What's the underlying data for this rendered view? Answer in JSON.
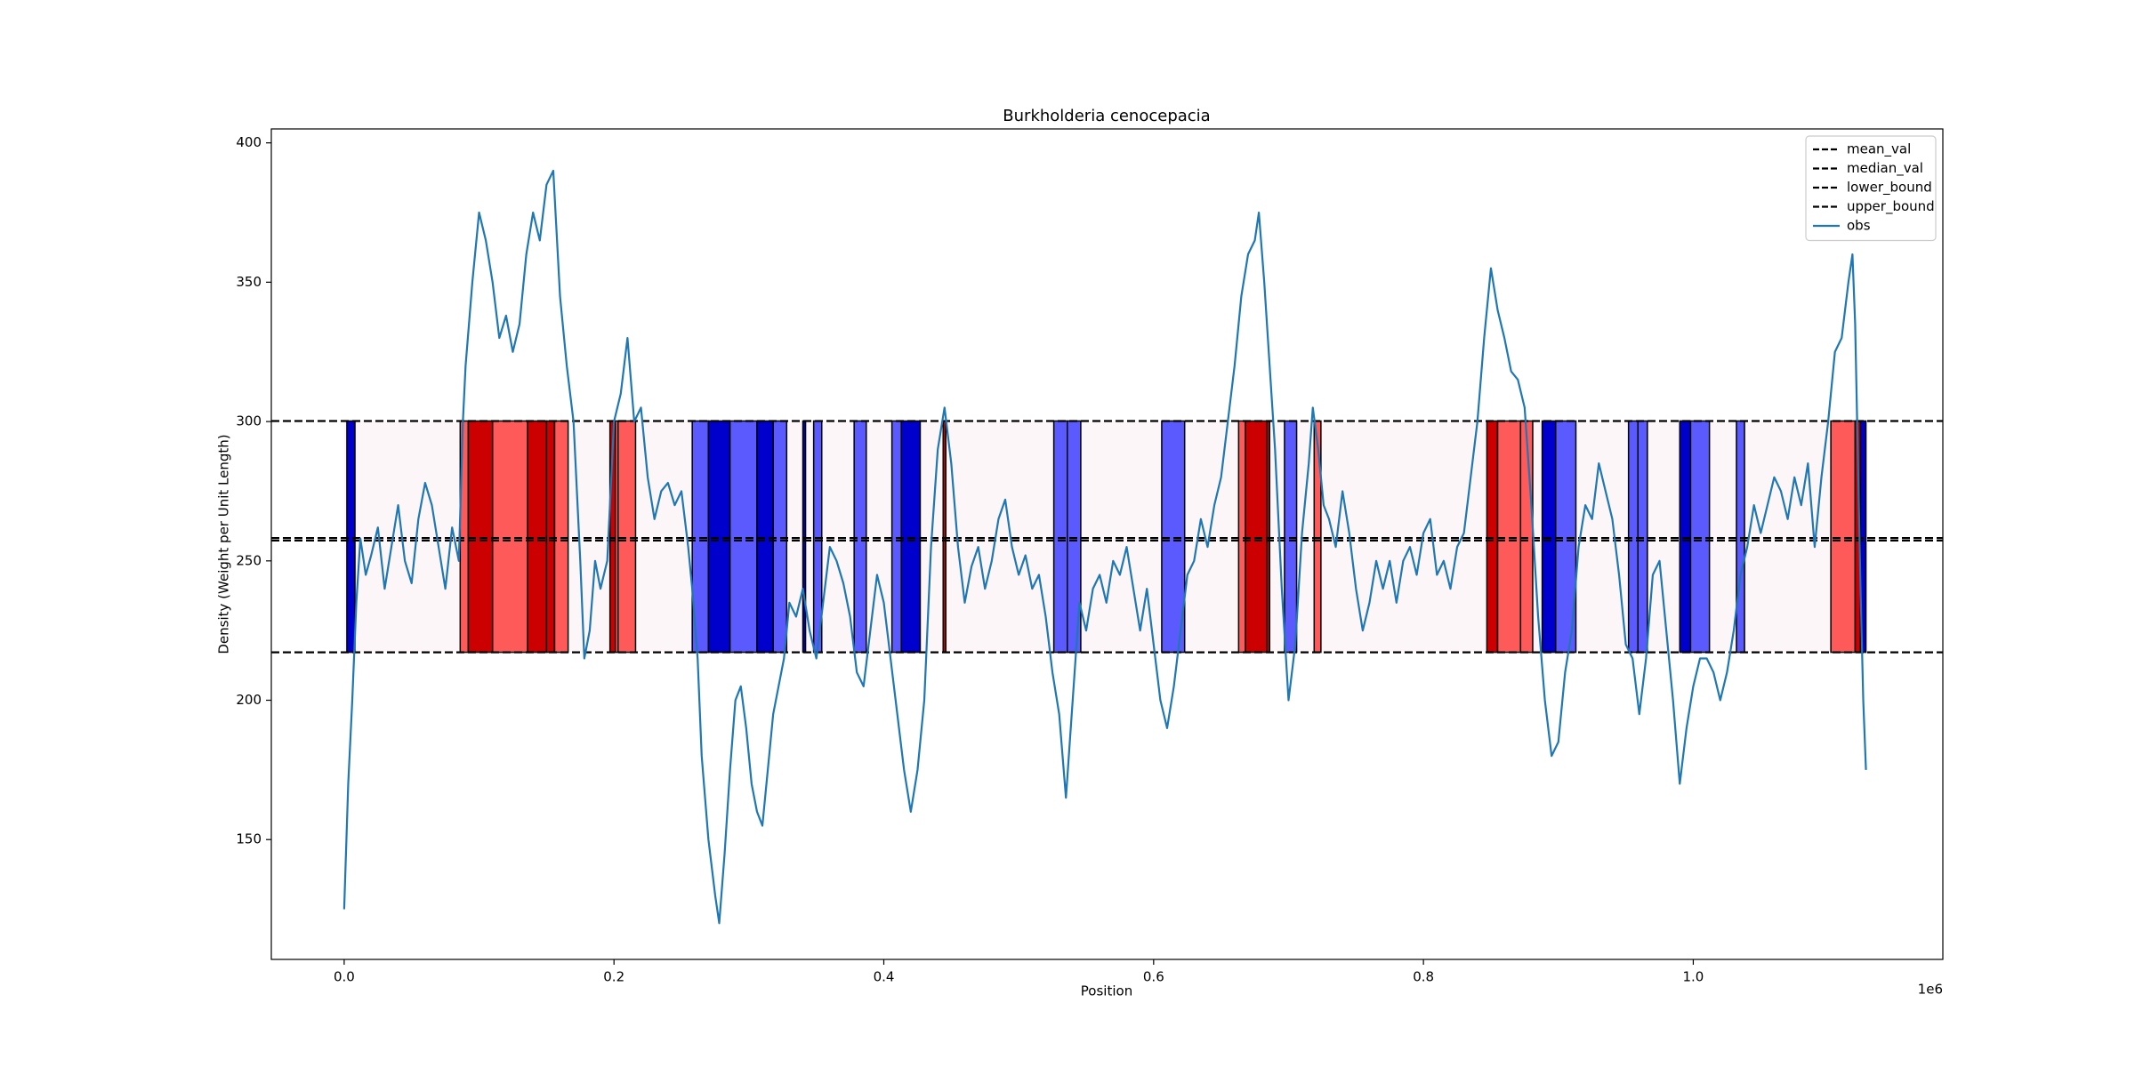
{
  "chart_data": {
    "type": "line",
    "title": "Burkholderia cenocepacia",
    "x_label": "Position",
    "y_label": "Density (Weight per Unit Length)",
    "x_offset_label": "1e6",
    "xlim": [
      -54000,
      1185000
    ],
    "ylim": [
      107,
      405
    ],
    "xticks": [
      {
        "value": 0,
        "label": "0.0"
      },
      {
        "value": 200000,
        "label": "0.2"
      },
      {
        "value": 400000,
        "label": "0.4"
      },
      {
        "value": 600000,
        "label": "0.6"
      },
      {
        "value": 800000,
        "label": "0.8"
      },
      {
        "value": 1000000,
        "label": "1.0"
      }
    ],
    "yticks": [
      150,
      200,
      250,
      300,
      350,
      400
    ],
    "legend": "upper right",
    "band": {
      "x": [
        0,
        1128000
      ],
      "color": "#fdf6f8"
    },
    "regions": [
      {
        "x": [
          2000,
          8000
        ],
        "color": "#0000cc"
      },
      {
        "x": [
          86000,
          92000
        ],
        "color": "#ff5a5a"
      },
      {
        "x": [
          92000,
          110000
        ],
        "color": "#cc0000"
      },
      {
        "x": [
          110000,
          136000
        ],
        "color": "#ff5a5a"
      },
      {
        "x": [
          136000,
          150000
        ],
        "color": "#cc0000"
      },
      {
        "x": [
          150000,
          156000
        ],
        "color": "#cc0000"
      },
      {
        "x": [
          156000,
          166000
        ],
        "color": "#ff5a5a"
      },
      {
        "x": [
          197000,
          201000
        ],
        "color": "#cc0000"
      },
      {
        "x": [
          201000,
          203000
        ],
        "color": "#ff5a5a"
      },
      {
        "x": [
          203000,
          216000
        ],
        "color": "#ff5a5a"
      },
      {
        "x": [
          258000,
          270000
        ],
        "color": "#5a5aff"
      },
      {
        "x": [
          270000,
          286000
        ],
        "color": "#0000cc"
      },
      {
        "x": [
          286000,
          306000
        ],
        "color": "#5a5aff"
      },
      {
        "x": [
          306000,
          318000
        ],
        "color": "#0000cc"
      },
      {
        "x": [
          318000,
          328000
        ],
        "color": "#5a5aff"
      },
      {
        "x": [
          340000,
          342000
        ],
        "color": "#0000cc"
      },
      {
        "x": [
          348000,
          354000
        ],
        "color": "#5a5aff"
      },
      {
        "x": [
          378000,
          387000
        ],
        "color": "#5a5aff"
      },
      {
        "x": [
          406000,
          413000
        ],
        "color": "#5a5aff"
      },
      {
        "x": [
          413000,
          427000
        ],
        "color": "#0000cc"
      },
      {
        "x": [
          444000,
          446000
        ],
        "color": "#cc0000"
      },
      {
        "x": [
          526000,
          536000
        ],
        "color": "#5a5aff"
      },
      {
        "x": [
          536000,
          546000
        ],
        "color": "#5a5aff"
      },
      {
        "x": [
          606000,
          623000
        ],
        "color": "#5a5aff"
      },
      {
        "x": [
          663000,
          668000
        ],
        "color": "#ff5a5a"
      },
      {
        "x": [
          668000,
          684000
        ],
        "color": "#cc0000"
      },
      {
        "x": [
          684000,
          686000
        ],
        "color": "#cc0000"
      },
      {
        "x": [
          697000,
          706000
        ],
        "color": "#5a5aff"
      },
      {
        "x": [
          719000,
          724000
        ],
        "color": "#ff5a5a"
      },
      {
        "x": [
          847000,
          855000
        ],
        "color": "#cc0000"
      },
      {
        "x": [
          855000,
          872000
        ],
        "color": "#ff5a5a"
      },
      {
        "x": [
          872000,
          881000
        ],
        "color": "#ff5a5a"
      },
      {
        "x": [
          888000,
          898000
        ],
        "color": "#0000cc"
      },
      {
        "x": [
          898000,
          913000
        ],
        "color": "#5a5aff"
      },
      {
        "x": [
          952000,
          959000
        ],
        "color": "#5a5aff"
      },
      {
        "x": [
          959000,
          966000
        ],
        "color": "#5a5aff"
      },
      {
        "x": [
          990000,
          998000
        ],
        "color": "#0000cc"
      },
      {
        "x": [
          998000,
          1012000
        ],
        "color": "#5a5aff"
      },
      {
        "x": [
          1032000,
          1038000
        ],
        "color": "#5a5aff"
      },
      {
        "x": [
          1102000,
          1120000
        ],
        "color": "#ff5a5a"
      },
      {
        "x": [
          1120000,
          1124000
        ],
        "color": "#cc0000"
      },
      {
        "x": [
          1124000,
          1128000
        ],
        "color": "#0000cc"
      }
    ],
    "hlines": [
      {
        "name": "mean_val",
        "value": 257.3,
        "color": "#000000"
      },
      {
        "name": "median_val",
        "value": 258.2,
        "color": "#000000"
      },
      {
        "name": "lower_bound",
        "value": 217.2,
        "color": "#000000"
      },
      {
        "name": "upper_bound",
        "value": 300.2,
        "color": "#000000"
      }
    ],
    "series": [
      {
        "name": "obs",
        "color": "#1f77b4",
        "x": [
          0,
          3000,
          6000,
          9000,
          12000,
          16000,
          20000,
          25000,
          30000,
          35000,
          40000,
          45000,
          50000,
          55000,
          60000,
          65000,
          70000,
          75000,
          80000,
          85000,
          88000,
          90000,
          95000,
          100000,
          105000,
          110000,
          115000,
          120000,
          125000,
          130000,
          135000,
          140000,
          145000,
          150000,
          155000,
          160000,
          165000,
          170000,
          175000,
          178000,
          182000,
          186000,
          190000,
          195000,
          200000,
          205000,
          210000,
          215000,
          220000,
          225000,
          230000,
          235000,
          240000,
          245000,
          250000,
          255000,
          258000,
          262000,
          265000,
          270000,
          275000,
          278000,
          282000,
          286000,
          290000,
          294000,
          298000,
          302000,
          306000,
          310000,
          314000,
          318000,
          322000,
          326000,
          330000,
          335000,
          340000,
          345000,
          350000,
          355000,
          360000,
          365000,
          370000,
          375000,
          380000,
          385000,
          390000,
          395000,
          400000,
          405000,
          410000,
          415000,
          420000,
          425000,
          430000,
          435000,
          440000,
          445000,
          450000,
          455000,
          460000,
          465000,
          470000,
          475000,
          480000,
          485000,
          490000,
          495000,
          500000,
          505000,
          510000,
          515000,
          520000,
          525000,
          530000,
          535000,
          540000,
          545000,
          550000,
          555000,
          560000,
          565000,
          570000,
          575000,
          580000,
          585000,
          590000,
          595000,
          600000,
          605000,
          610000,
          615000,
          620000,
          625000,
          630000,
          635000,
          640000,
          645000,
          650000,
          655000,
          660000,
          665000,
          670000,
          675000,
          678000,
          682000,
          686000,
          690000,
          695000,
          700000,
          705000,
          710000,
          715000,
          718000,
          722000,
          726000,
          730000,
          735000,
          740000,
          745000,
          750000,
          755000,
          760000,
          765000,
          770000,
          775000,
          780000,
          785000,
          790000,
          795000,
          800000,
          805000,
          810000,
          815000,
          820000,
          825000,
          830000,
          835000,
          840000,
          845000,
          850000,
          855000,
          860000,
          865000,
          870000,
          875000,
          880000,
          885000,
          890000,
          895000,
          900000,
          905000,
          910000,
          915000,
          920000,
          925000,
          930000,
          935000,
          940000,
          945000,
          950000,
          955000,
          960000,
          965000,
          970000,
          975000,
          980000,
          985000,
          990000,
          995000,
          1000000,
          1005000,
          1010000,
          1015000,
          1020000,
          1025000,
          1030000,
          1035000,
          1040000,
          1045000,
          1050000,
          1055000,
          1060000,
          1065000,
          1070000,
          1075000,
          1080000,
          1085000,
          1090000,
          1095000,
          1100000,
          1105000,
          1110000,
          1115000,
          1118000,
          1120000,
          1124000,
          1126000,
          1128000
        ],
        "values": [
          125,
          170,
          200,
          235,
          258,
          245,
          252,
          262,
          240,
          255,
          270,
          250,
          242,
          265,
          278,
          270,
          255,
          240,
          262,
          250,
          300,
          320,
          350,
          375,
          365,
          350,
          330,
          338,
          325,
          335,
          360,
          375,
          365,
          385,
          390,
          345,
          320,
          300,
          250,
          215,
          225,
          250,
          240,
          250,
          300,
          310,
          330,
          300,
          305,
          280,
          265,
          275,
          278,
          270,
          275,
          255,
          240,
          215,
          180,
          150,
          130,
          120,
          145,
          175,
          200,
          205,
          190,
          170,
          160,
          155,
          175,
          195,
          205,
          215,
          235,
          230,
          240,
          225,
          215,
          235,
          255,
          250,
          242,
          230,
          210,
          205,
          225,
          245,
          235,
          215,
          195,
          175,
          160,
          175,
          200,
          255,
          290,
          305,
          285,
          255,
          235,
          248,
          255,
          240,
          250,
          265,
          272,
          255,
          245,
          252,
          240,
          245,
          230,
          210,
          195,
          165,
          200,
          235,
          225,
          240,
          245,
          235,
          250,
          245,
          255,
          240,
          225,
          240,
          220,
          200,
          190,
          205,
          225,
          245,
          250,
          265,
          255,
          270,
          280,
          300,
          320,
          345,
          360,
          365,
          375,
          350,
          320,
          290,
          240,
          200,
          220,
          260,
          285,
          305,
          290,
          270,
          265,
          255,
          275,
          260,
          240,
          225,
          235,
          250,
          240,
          250,
          235,
          250,
          255,
          245,
          260,
          265,
          245,
          250,
          240,
          255,
          260,
          280,
          300,
          330,
          355,
          340,
          330,
          318,
          315,
          305,
          270,
          230,
          200,
          180,
          185,
          210,
          225,
          255,
          270,
          265,
          285,
          275,
          265,
          245,
          220,
          215,
          195,
          215,
          245,
          250,
          225,
          200,
          170,
          190,
          205,
          215,
          215,
          210,
          200,
          210,
          225,
          245,
          255,
          270,
          260,
          270,
          280,
          275,
          265,
          280,
          270,
          285,
          255,
          280,
          300,
          325,
          330,
          350,
          360,
          335,
          240,
          200,
          175
        ]
      }
    ]
  }
}
